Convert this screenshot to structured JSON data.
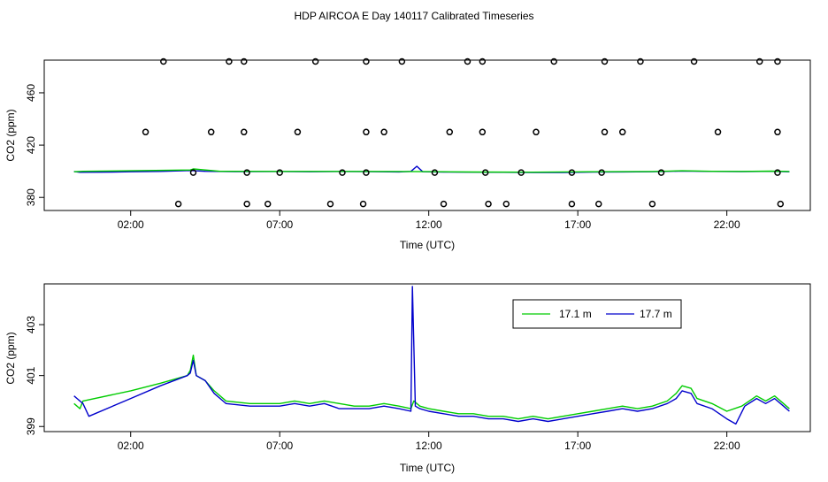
{
  "title": "HDP AIRCOA E  Day 140117  Calibrated Timeseries",
  "chart_data": [
    {
      "type": "scatter",
      "xlabel": "Time (UTC)",
      "ylabel": "CO2 (ppm)",
      "x_ticks": [
        "02:00",
        "07:00",
        "12:00",
        "17:00",
        "22:00"
      ],
      "x_tick_values": [
        2,
        7,
        12,
        17,
        22
      ],
      "xlim": [
        -0.9,
        24.8
      ],
      "ylim": [
        370,
        485
      ],
      "y_ticks": [
        380,
        420,
        460
      ],
      "grid": false,
      "legend": "none",
      "series": [
        {
          "color": "#0000cc",
          "style": "line",
          "points": [
            [
              0.1,
              399.8
            ],
            [
              0.3,
              399.2
            ],
            [
              1,
              399.3
            ],
            [
              2,
              399.6
            ],
            [
              3,
              399.9
            ],
            [
              4,
              400.6
            ],
            [
              4.5,
              400
            ],
            [
              5.5,
              399.7
            ],
            [
              7,
              399.8
            ],
            [
              8,
              399.6
            ],
            [
              9,
              399.8
            ],
            [
              10,
              399.7
            ],
            [
              11,
              399.5
            ],
            [
              11.4,
              399.9
            ],
            [
              11.6,
              403.8
            ],
            [
              11.8,
              399.6
            ],
            [
              12.5,
              399.4
            ],
            [
              13.5,
              399.3
            ],
            [
              14.5,
              399.2
            ],
            [
              15.5,
              399.1
            ],
            [
              16.5,
              399.1
            ],
            [
              17.5,
              399.4
            ],
            [
              18.5,
              399.5
            ],
            [
              19.5,
              399.6
            ],
            [
              20.5,
              400.2
            ],
            [
              21.5,
              399.9
            ],
            [
              22.5,
              399.7
            ],
            [
              23.5,
              400
            ],
            [
              24.1,
              399.6
            ]
          ]
        },
        {
          "color": "#00cc00",
          "style": "line",
          "points": [
            [
              0.1,
              399.6
            ],
            [
              0.4,
              400
            ],
            [
              4,
              401
            ],
            [
              4.1,
              401.8
            ],
            [
              5,
              400
            ],
            [
              7,
              399.9
            ],
            [
              9,
              399.9
            ],
            [
              11,
              399.8
            ],
            [
              12,
              399.7
            ],
            [
              13.5,
              399.4
            ],
            [
              15.5,
              399.3
            ],
            [
              17.5,
              399.6
            ],
            [
              19.5,
              399.8
            ],
            [
              20.5,
              400.4
            ],
            [
              21.5,
              400
            ],
            [
              22.5,
              399.9
            ],
            [
              23.5,
              400.1
            ],
            [
              24.1,
              399.8
            ]
          ]
        },
        {
          "color": "#000000",
          "style": "points",
          "points": [
            [
              3.1,
              484
            ],
            [
              5.3,
              484
            ],
            [
              5.8,
              484
            ],
            [
              8.2,
              484
            ],
            [
              9.9,
              484
            ],
            [
              11.1,
              484
            ],
            [
              13.3,
              484
            ],
            [
              13.8,
              484
            ],
            [
              16.2,
              484
            ],
            [
              17.9,
              484
            ],
            [
              19.1,
              484
            ],
            [
              20.9,
              484
            ],
            [
              23.1,
              484
            ],
            [
              23.7,
              484
            ],
            [
              2.5,
              430
            ],
            [
              4.7,
              430
            ],
            [
              5.8,
              430
            ],
            [
              7.6,
              430
            ],
            [
              9.9,
              430
            ],
            [
              10.5,
              430
            ],
            [
              12.7,
              430
            ],
            [
              13.8,
              430
            ],
            [
              15.6,
              430
            ],
            [
              17.9,
              430
            ],
            [
              18.5,
              430
            ],
            [
              21.7,
              430
            ],
            [
              23.7,
              430
            ],
            [
              4.1,
              399
            ],
            [
              5.9,
              399
            ],
            [
              7.0,
              399
            ],
            [
              9.1,
              399
            ],
            [
              9.9,
              399
            ],
            [
              12.2,
              399
            ],
            [
              13.9,
              399
            ],
            [
              15.1,
              399
            ],
            [
              16.8,
              399
            ],
            [
              17.8,
              399
            ],
            [
              19.8,
              399
            ],
            [
              23.7,
              399
            ],
            [
              3.6,
              375
            ],
            [
              5.9,
              375
            ],
            [
              6.6,
              375
            ],
            [
              8.7,
              375
            ],
            [
              9.8,
              375
            ],
            [
              12.5,
              375
            ],
            [
              14.0,
              375
            ],
            [
              14.6,
              375
            ],
            [
              16.8,
              375
            ],
            [
              17.7,
              375
            ],
            [
              19.5,
              375
            ],
            [
              23.8,
              375
            ]
          ]
        }
      ]
    },
    {
      "type": "line",
      "xlabel": "Time (UTC)",
      "ylabel": "CO2 (ppm)",
      "x_ticks": [
        "02:00",
        "07:00",
        "12:00",
        "17:00",
        "22:00"
      ],
      "x_tick_values": [
        2,
        7,
        12,
        17,
        22
      ],
      "xlim": [
        -0.9,
        24.8
      ],
      "ylim": [
        398.8,
        404.6
      ],
      "y_ticks": [
        399,
        401,
        403
      ],
      "grid": false,
      "legend": "top-right",
      "series": [
        {
          "name": "17.1 m",
          "color": "#00cc00",
          "points": [
            [
              0.1,
              399.9
            ],
            [
              0.3,
              399.7
            ],
            [
              0.4,
              400
            ],
            [
              2,
              400.4
            ],
            [
              3,
              400.7
            ],
            [
              3.9,
              401
            ],
            [
              4.0,
              401.2
            ],
            [
              4.1,
              401.8
            ],
            [
              4.2,
              401
            ],
            [
              4.5,
              400.8
            ],
            [
              4.8,
              400.4
            ],
            [
              5.2,
              400
            ],
            [
              6,
              399.9
            ],
            [
              7,
              399.9
            ],
            [
              7.5,
              400
            ],
            [
              8,
              399.9
            ],
            [
              8.5,
              400
            ],
            [
              9,
              399.9
            ],
            [
              9.5,
              399.8
            ],
            [
              10,
              399.8
            ],
            [
              10.5,
              399.9
            ],
            [
              11,
              399.8
            ],
            [
              11.4,
              399.7
            ],
            [
              11.5,
              400
            ],
            [
              11.7,
              399.8
            ],
            [
              12,
              399.7
            ],
            [
              12.5,
              399.6
            ],
            [
              13,
              399.5
            ],
            [
              13.5,
              399.5
            ],
            [
              14,
              399.4
            ],
            [
              14.5,
              399.4
            ],
            [
              15,
              399.3
            ],
            [
              15.5,
              399.4
            ],
            [
              16,
              399.3
            ],
            [
              16.5,
              399.4
            ],
            [
              17,
              399.5
            ],
            [
              17.5,
              399.6
            ],
            [
              18,
              399.7
            ],
            [
              18.5,
              399.8
            ],
            [
              19,
              399.7
            ],
            [
              19.5,
              399.8
            ],
            [
              20,
              400
            ],
            [
              20.3,
              400.3
            ],
            [
              20.5,
              400.6
            ],
            [
              20.8,
              400.5
            ],
            [
              21,
              400.1
            ],
            [
              21.5,
              399.9
            ],
            [
              22,
              399.6
            ],
            [
              22.5,
              399.8
            ],
            [
              23,
              400.2
            ],
            [
              23.3,
              400
            ],
            [
              23.6,
              400.2
            ],
            [
              23.9,
              399.9
            ],
            [
              24.1,
              399.7
            ]
          ]
        },
        {
          "name": "17.7 m",
          "color": "#0000cc",
          "points": [
            [
              0.1,
              400.2
            ],
            [
              0.2,
              400.1
            ],
            [
              0.4,
              399.9
            ],
            [
              0.6,
              399.4
            ],
            [
              2,
              400.1
            ],
            [
              3,
              400.6
            ],
            [
              3.9,
              401.0
            ],
            [
              4.0,
              401.1
            ],
            [
              4.1,
              401.6
            ],
            [
              4.2,
              401
            ],
            [
              4.5,
              400.8
            ],
            [
              4.8,
              400.3
            ],
            [
              5.2,
              399.9
            ],
            [
              6,
              399.8
            ],
            [
              7,
              399.8
            ],
            [
              7.5,
              399.9
            ],
            [
              8,
              399.8
            ],
            [
              8.5,
              399.9
            ],
            [
              9,
              399.7
            ],
            [
              9.5,
              399.7
            ],
            [
              10,
              399.7
            ],
            [
              10.5,
              399.8
            ],
            [
              11,
              399.7
            ],
            [
              11.4,
              399.6
            ],
            [
              11.45,
              404.5
            ],
            [
              11.55,
              399.8
            ],
            [
              11.7,
              399.7
            ],
            [
              12,
              399.6
            ],
            [
              12.5,
              399.5
            ],
            [
              13,
              399.4
            ],
            [
              13.5,
              399.4
            ],
            [
              14,
              399.3
            ],
            [
              14.5,
              399.3
            ],
            [
              15,
              399.2
            ],
            [
              15.5,
              399.3
            ],
            [
              16,
              399.2
            ],
            [
              16.5,
              399.3
            ],
            [
              17,
              399.4
            ],
            [
              17.5,
              399.5
            ],
            [
              18,
              399.6
            ],
            [
              18.5,
              399.7
            ],
            [
              19,
              399.6
            ],
            [
              19.5,
              399.7
            ],
            [
              20,
              399.9
            ],
            [
              20.3,
              400.1
            ],
            [
              20.5,
              400.4
            ],
            [
              20.8,
              400.3
            ],
            [
              21,
              399.9
            ],
            [
              21.5,
              399.7
            ],
            [
              22,
              399.3
            ],
            [
              22.3,
              399.1
            ],
            [
              22.6,
              399.8
            ],
            [
              23,
              400.1
            ],
            [
              23.3,
              399.9
            ],
            [
              23.6,
              400.1
            ],
            [
              23.9,
              399.8
            ],
            [
              24.1,
              399.6
            ]
          ]
        }
      ]
    }
  ]
}
